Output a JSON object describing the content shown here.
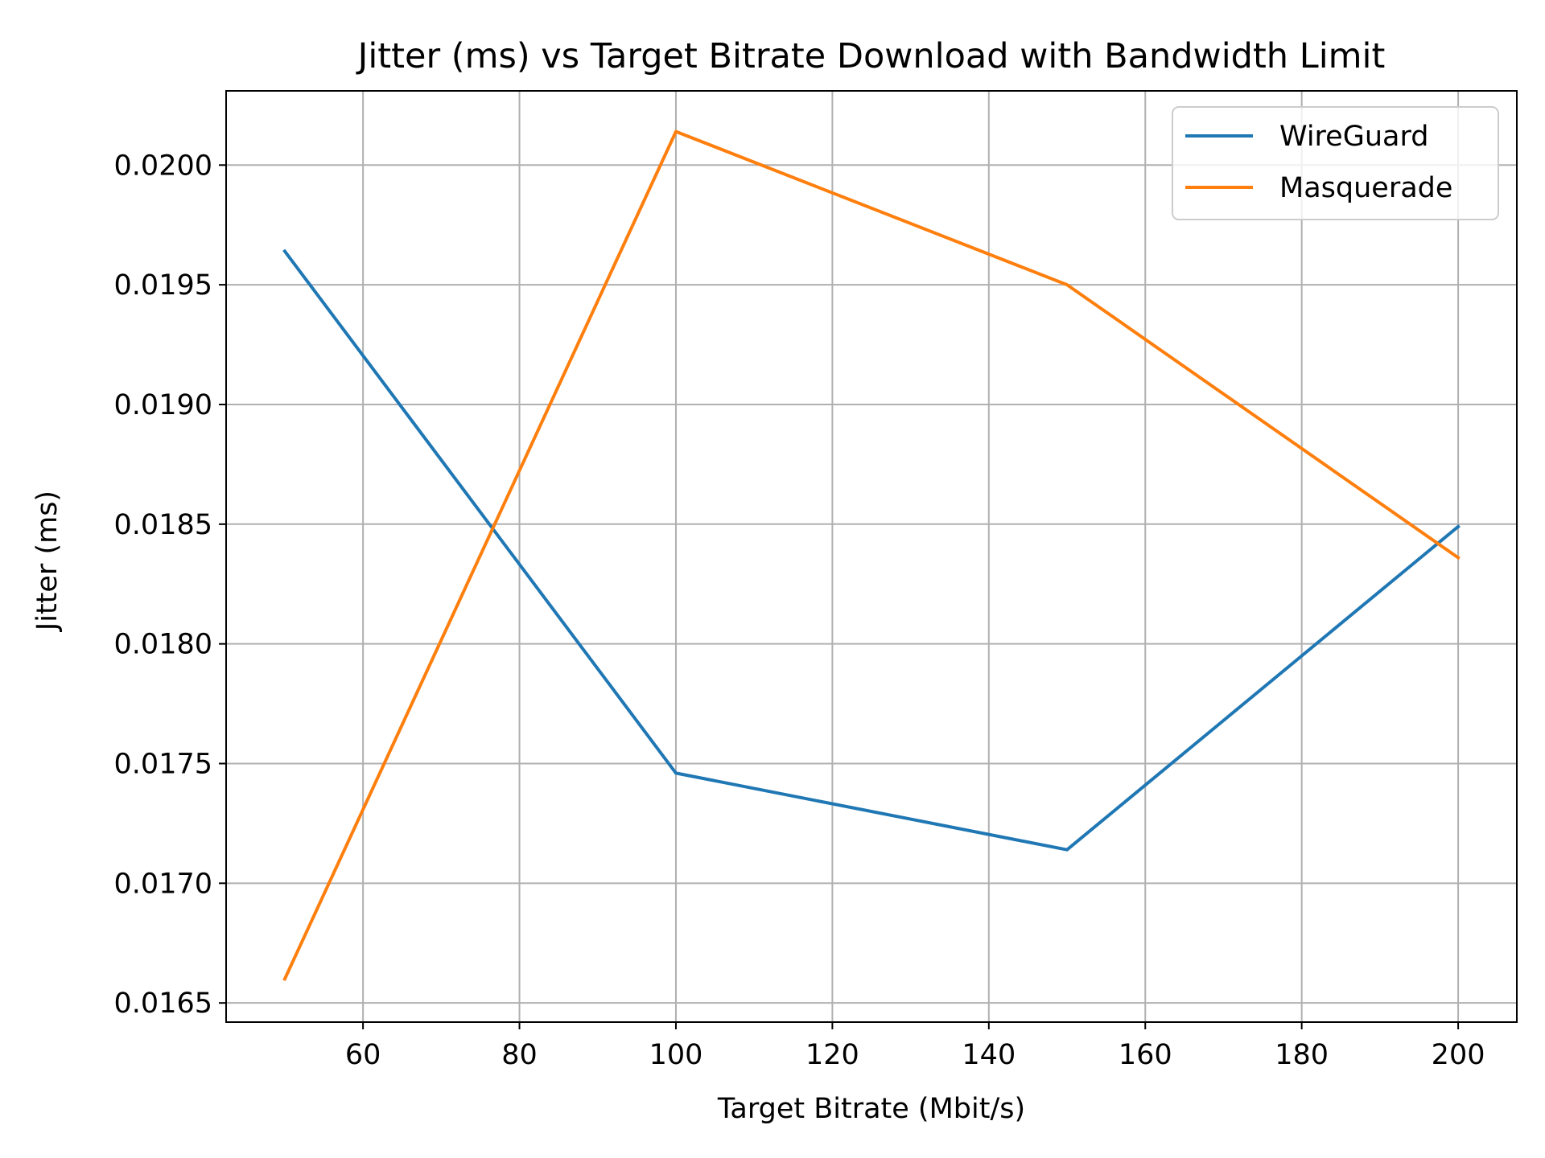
{
  "chart_data": {
    "type": "line",
    "title": "Jitter (ms) vs Target Bitrate Download with Bandwidth Limit",
    "xlabel": "Target Bitrate (Mbit/s)",
    "ylabel": "Jitter (ms)",
    "xlim": [
      42.5,
      207.5
    ],
    "ylim": [
      0.01642,
      0.02031
    ],
    "xticks": [
      60,
      80,
      100,
      120,
      140,
      160,
      180,
      200
    ],
    "xtick_labels": [
      "60",
      "80",
      "100",
      "120",
      "140",
      "160",
      "180",
      "200"
    ],
    "yticks": [
      0.0165,
      0.017,
      0.0175,
      0.018,
      0.0185,
      0.019,
      0.0195,
      0.02
    ],
    "ytick_labels": [
      "0.0165",
      "0.0170",
      "0.0175",
      "0.0180",
      "0.0185",
      "0.0190",
      "0.0195",
      "0.0200"
    ],
    "grid": true,
    "legend_position": "top-right",
    "x": [
      50,
      100,
      150,
      200
    ],
    "series": [
      {
        "name": "WireGuard",
        "color": "#1f77b4",
        "values": [
          0.01964,
          0.01746,
          0.01714,
          0.01849
        ]
      },
      {
        "name": "Masquerade",
        "color": "#ff7f0e",
        "values": [
          0.0166,
          0.02014,
          0.0195,
          0.01836
        ]
      }
    ]
  }
}
